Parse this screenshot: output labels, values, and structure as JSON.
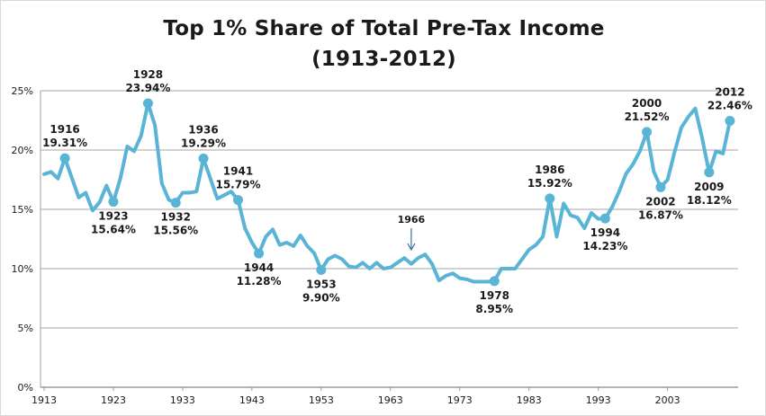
{
  "chart_data": {
    "type": "line",
    "title": "Top 1% Share of Total Pre-Tax Income",
    "subtitle": "(1913-2012)",
    "xlabel": "",
    "ylabel": "",
    "xlim": [
      1913,
      2012
    ],
    "ylim": [
      0,
      25
    ],
    "x_ticks": [
      "1913",
      "1923",
      "1933",
      "1943",
      "1953",
      "1963",
      "1973",
      "1983",
      "1993",
      "2003"
    ],
    "y_ticks": [
      "0%",
      "5%",
      "10%",
      "15%",
      "20%",
      "25%"
    ],
    "grid": true,
    "legend": "none",
    "colors": {
      "line": "#5ab4d6",
      "grid": "#888888",
      "text": "#1a1a1a",
      "arrow": "#3a6ea5"
    },
    "series": [
      {
        "x": [
          1913,
          1914,
          1915,
          1916,
          1917,
          1918,
          1919,
          1920,
          1921,
          1922,
          1923,
          1924,
          1925,
          1926,
          1927,
          1928,
          1929,
          1930,
          1931,
          1932,
          1933,
          1934,
          1935,
          1936,
          1937,
          1938,
          1939,
          1940,
          1941,
          1942,
          1943,
          1944,
          1945,
          1946,
          1947,
          1948,
          1949,
          1950,
          1951,
          1952,
          1953,
          1954,
          1955,
          1956,
          1957,
          1958,
          1959,
          1960,
          1961,
          1962,
          1963,
          1964,
          1965,
          1966,
          1967,
          1968,
          1969,
          1970,
          1971,
          1972,
          1973,
          1974,
          1975,
          1976,
          1977,
          1978,
          1979,
          1980,
          1981,
          1982,
          1983,
          1984,
          1985,
          1986,
          1987,
          1988,
          1989,
          1990,
          1991,
          1992,
          1993,
          1994,
          1995,
          1996,
          1997,
          1998,
          1999,
          2000,
          2001,
          2002,
          2003,
          2004,
          2005,
          2006,
          2007,
          2008,
          2009,
          2010,
          2011,
          2012
        ],
        "values": [
          17.96,
          18.16,
          17.6,
          19.31,
          17.66,
          16.0,
          16.4,
          14.9,
          15.6,
          17.0,
          15.64,
          17.6,
          20.3,
          19.9,
          21.2,
          23.94,
          22.1,
          17.2,
          15.8,
          15.56,
          16.4,
          16.4,
          16.5,
          19.29,
          17.6,
          15.9,
          16.2,
          16.5,
          15.79,
          13.4,
          12.2,
          11.28,
          12.7,
          13.3,
          12.0,
          12.2,
          11.9,
          12.8,
          11.9,
          11.3,
          9.9,
          10.8,
          11.1,
          10.8,
          10.2,
          10.1,
          10.5,
          10.0,
          10.5,
          10.0,
          10.1,
          10.5,
          10.9,
          10.4,
          10.9,
          11.2,
          10.4,
          9.0,
          9.4,
          9.6,
          9.2,
          9.1,
          8.9,
          8.9,
          8.9,
          8.95,
          10.0,
          10.0,
          10.0,
          10.8,
          11.6,
          12.0,
          12.7,
          15.92,
          12.7,
          15.5,
          14.5,
          14.3,
          13.4,
          14.7,
          14.2,
          14.23,
          15.2,
          16.5,
          18.0,
          18.8,
          19.9,
          21.52,
          18.2,
          16.87,
          17.5,
          19.8,
          21.9,
          22.8,
          23.5,
          21.0,
          18.12,
          19.9,
          19.7,
          22.46
        ]
      }
    ],
    "annotations": [
      {
        "year": 1916,
        "value": 19.31,
        "label_year": "1916",
        "label_value": "19.31%",
        "pos": "above"
      },
      {
        "year": 1923,
        "value": 15.64,
        "label_year": "1923",
        "label_value": "15.64%",
        "pos": "below"
      },
      {
        "year": 1928,
        "value": 23.94,
        "label_year": "1928",
        "label_value": "23.94%",
        "pos": "above"
      },
      {
        "year": 1932,
        "value": 15.56,
        "label_year": "1932",
        "label_value": "15.56%",
        "pos": "below"
      },
      {
        "year": 1936,
        "value": 19.29,
        "label_year": "1936",
        "label_value": "19.29%",
        "pos": "above"
      },
      {
        "year": 1941,
        "value": 15.79,
        "label_year": "1941",
        "label_value": "15.79%",
        "pos": "above"
      },
      {
        "year": 1944,
        "value": 11.28,
        "label_year": "1944",
        "label_value": "11.28%",
        "pos": "below"
      },
      {
        "year": 1953,
        "value": 9.9,
        "label_year": "1953",
        "label_value": "9.90%",
        "pos": "below"
      },
      {
        "year": 1978,
        "value": 8.95,
        "label_year": "1978",
        "label_value": "8.95%",
        "pos": "below"
      },
      {
        "year": 1986,
        "value": 15.92,
        "label_year": "1986",
        "label_value": "15.92%",
        "pos": "above"
      },
      {
        "year": 1994,
        "value": 14.23,
        "label_year": "1994",
        "label_value": "14.23%",
        "pos": "below"
      },
      {
        "year": 2000,
        "value": 21.52,
        "label_year": "2000",
        "label_value": "21.52%",
        "pos": "above"
      },
      {
        "year": 2002,
        "value": 16.87,
        "label_year": "2002",
        "label_value": "16.87%",
        "pos": "below"
      },
      {
        "year": 2009,
        "value": 18.12,
        "label_year": "2009",
        "label_value": "18.12%",
        "pos": "below"
      },
      {
        "year": 2012,
        "value": 22.46,
        "label_year": "2012",
        "label_value": "22.46%",
        "pos": "above"
      }
    ],
    "arrow_annotation": {
      "year": 1966,
      "label": "1966"
    }
  }
}
